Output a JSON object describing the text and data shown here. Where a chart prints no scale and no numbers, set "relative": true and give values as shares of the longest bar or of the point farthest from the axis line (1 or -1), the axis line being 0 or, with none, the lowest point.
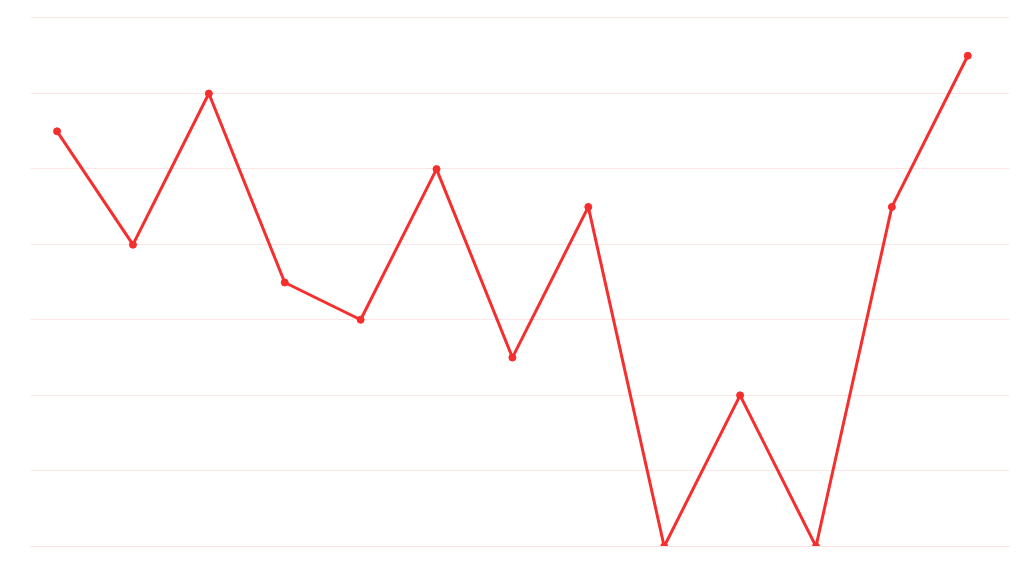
{
  "chart_data": {
    "type": "line",
    "relative": true,
    "categories": [
      null,
      null,
      null,
      null,
      null,
      null,
      null,
      null,
      null,
      null,
      null,
      null,
      null
    ],
    "series": [
      {
        "color": "#f52e2e",
        "values": [
          0.846,
          0.615,
          0.923,
          0.538,
          0.462,
          0.769,
          0.385,
          0.692,
          0,
          0.308,
          0,
          0.692,
          1
        ]
      }
    ],
    "marker": "circle",
    "grid": "y"
  }
}
